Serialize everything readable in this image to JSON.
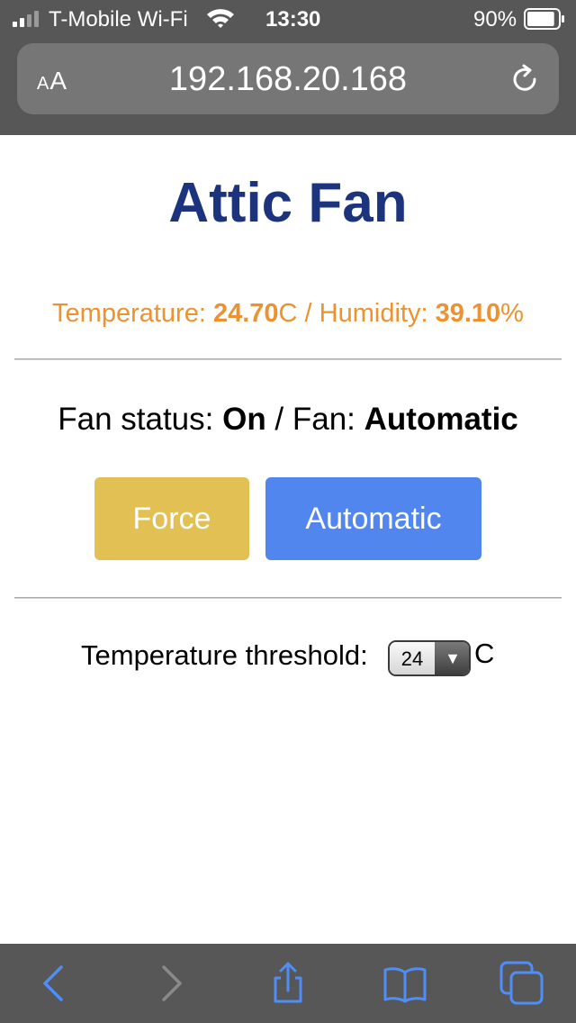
{
  "status_bar": {
    "carrier": "T-Mobile Wi-Fi",
    "time": "13:30",
    "battery_percent": "90%",
    "battery_level": 0.9
  },
  "browser": {
    "text_size_button": "AA",
    "url": "192.168.20.168"
  },
  "page": {
    "title": "Attic Fan",
    "sensors": {
      "temperature_label": "Temperature: ",
      "temperature_value": "24.70",
      "temperature_unit": "C / Humidity: ",
      "humidity_value": "39.10",
      "humidity_unit": "%"
    },
    "fan": {
      "status_label": "Fan status: ",
      "status_value": "On",
      "separator": " / Fan: ",
      "mode_value": "Automatic"
    },
    "buttons": {
      "force_label": "Force",
      "automatic_label": "Automatic"
    },
    "threshold": {
      "label": "Temperature threshold:",
      "selected_value": "24",
      "unit": "C"
    }
  },
  "colors": {
    "title": "#1c347d",
    "sensor_text": "#ec9230",
    "force_button": "#e2c054",
    "automatic_button": "#5086ed",
    "chrome": "#575757",
    "toolbar_icon_active": "#4f8ef7",
    "toolbar_icon_disabled": "#8a8a8a"
  },
  "toolbar": {
    "icons": [
      "back-icon",
      "forward-icon",
      "share-icon",
      "bookmarks-icon",
      "tabs-icon"
    ]
  }
}
